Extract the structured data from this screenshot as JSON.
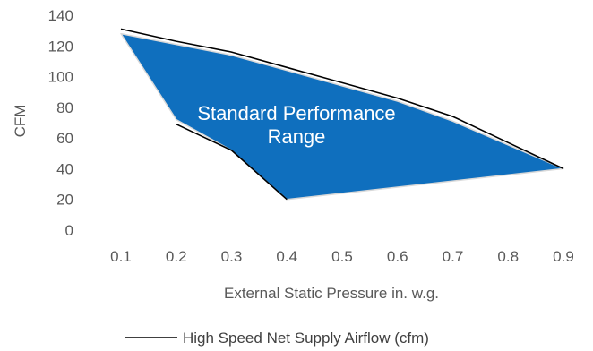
{
  "chart_data": {
    "type": "area",
    "xlabel": "External Static Pressure in. w.g.",
    "ylabel": "CFM",
    "ylim": [
      0,
      140
    ],
    "y_ticks": [
      0,
      20,
      40,
      60,
      80,
      100,
      120,
      140
    ],
    "x_categories": [
      "0.1",
      "0.2",
      "0.3",
      "0.4",
      "0.5",
      "0.6",
      "0.7",
      "0.8",
      "0.9"
    ],
    "grid": false,
    "legend_position": "bottom",
    "region": {
      "label": "Standard Performance Range",
      "label_lines": [
        "Standard Performance",
        "Range"
      ],
      "color": "#0F6FBE",
      "outline_color": "#D9D9D9",
      "points": [
        {
          "x": 0.1,
          "y": 128
        },
        {
          "x": 0.2,
          "y": 121
        },
        {
          "x": 0.3,
          "y": 114
        },
        {
          "x": 0.4,
          "y": 104
        },
        {
          "x": 0.5,
          "y": 94
        },
        {
          "x": 0.6,
          "y": 84
        },
        {
          "x": 0.7,
          "y": 71
        },
        {
          "x": 0.9,
          "y": 40
        },
        {
          "x": 0.4,
          "y": 20
        },
        {
          "x": 0.3,
          "y": 52
        },
        {
          "x": 0.2,
          "y": 72
        }
      ]
    },
    "series": [
      {
        "name": "High Speed Net Supply Airflow (cfm)",
        "color": "#000000",
        "segments": [
          [
            {
              "x": 0.1,
              "y": 131
            },
            {
              "x": 0.2,
              "y": 123
            },
            {
              "x": 0.3,
              "y": 116
            },
            {
              "x": 0.4,
              "y": 106
            },
            {
              "x": 0.5,
              "y": 96
            },
            {
              "x": 0.6,
              "y": 86
            },
            {
              "x": 0.7,
              "y": 74
            },
            {
              "x": 0.8,
              "y": 57
            },
            {
              "x": 0.9,
              "y": 40
            }
          ],
          [
            {
              "x": 0.2,
              "y": 69
            },
            {
              "x": 0.3,
              "y": 52
            },
            {
              "x": 0.4,
              "y": 20
            }
          ]
        ]
      }
    ]
  }
}
